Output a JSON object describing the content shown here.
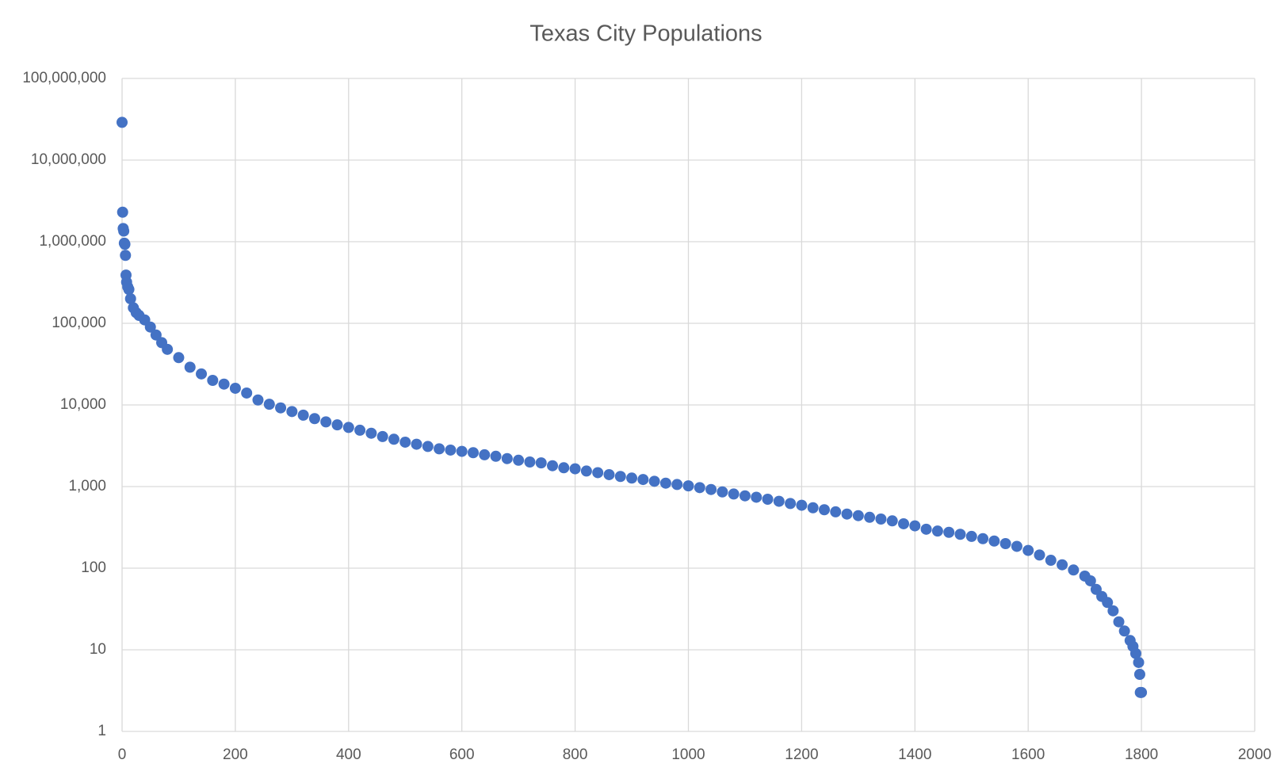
{
  "chart_data": {
    "type": "scatter",
    "title": "Texas City Populations",
    "log_y": true,
    "grid": true,
    "color": "#4472c4",
    "xlim": [
      0,
      2000
    ],
    "xticks": [
      0,
      200,
      400,
      600,
      800,
      1000,
      1200,
      1400,
      1600,
      1800,
      2000
    ],
    "ylim": [
      1,
      100000000
    ],
    "yticks": [
      1,
      10,
      100,
      {
        "value": 1000,
        "label": "1,000"
      },
      {
        "value": 10000,
        "label": "10,000"
      },
      {
        "value": 100000,
        "label": "100,000"
      },
      {
        "value": 1000000,
        "label": "1,000,000"
      },
      {
        "value": 10000000,
        "label": "10,000,000"
      },
      {
        "value": 100000000,
        "label": "100,000,000"
      }
    ],
    "x": [
      0,
      1,
      2,
      3,
      4,
      5,
      6,
      7,
      8,
      10,
      12,
      15,
      20,
      25,
      30,
      40,
      50,
      60,
      70,
      80,
      100,
      120,
      140,
      160,
      180,
      200,
      220,
      240,
      260,
      280,
      300,
      320,
      340,
      360,
      380,
      400,
      420,
      440,
      460,
      480,
      500,
      520,
      540,
      560,
      580,
      600,
      620,
      640,
      660,
      680,
      700,
      720,
      740,
      760,
      780,
      800,
      820,
      840,
      860,
      880,
      900,
      920,
      940,
      960,
      980,
      1000,
      1020,
      1040,
      1060,
      1080,
      1100,
      1120,
      1140,
      1160,
      1180,
      1200,
      1220,
      1240,
      1260,
      1280,
      1300,
      1320,
      1340,
      1360,
      1380,
      1400,
      1420,
      1440,
      1460,
      1480,
      1500,
      1520,
      1540,
      1560,
      1580,
      1600,
      1620,
      1640,
      1660,
      1680,
      1700,
      1710,
      1720,
      1730,
      1740,
      1750,
      1760,
      1770,
      1780,
      1785,
      1790,
      1795,
      1797,
      1798,
      1800
    ],
    "values": [
      29000000,
      2300000,
      1450000,
      1350000,
      960000,
      930000,
      680000,
      390000,
      320000,
      280000,
      260000,
      200000,
      155000,
      135000,
      125000,
      110000,
      90000,
      72000,
      58000,
      48000,
      38000,
      29000,
      24000,
      20000,
      18000,
      16000,
      14000,
      11500,
      10200,
      9200,
      8300,
      7500,
      6800,
      6200,
      5700,
      5300,
      4900,
      4500,
      4100,
      3800,
      3500,
      3300,
      3100,
      2900,
      2800,
      2700,
      2600,
      2450,
      2350,
      2200,
      2100,
      2000,
      1950,
      1800,
      1700,
      1650,
      1550,
      1480,
      1400,
      1330,
      1270,
      1220,
      1160,
      1100,
      1060,
      1020,
      970,
      920,
      860,
      810,
      770,
      740,
      700,
      660,
      620,
      590,
      550,
      520,
      490,
      460,
      440,
      420,
      400,
      380,
      350,
      330,
      300,
      285,
      275,
      260,
      245,
      230,
      215,
      200,
      185,
      165,
      145,
      125,
      110,
      95,
      80,
      70,
      55,
      45,
      38,
      30,
      22,
      17,
      13,
      11,
      9,
      7,
      5,
      3,
      3
    ]
  }
}
